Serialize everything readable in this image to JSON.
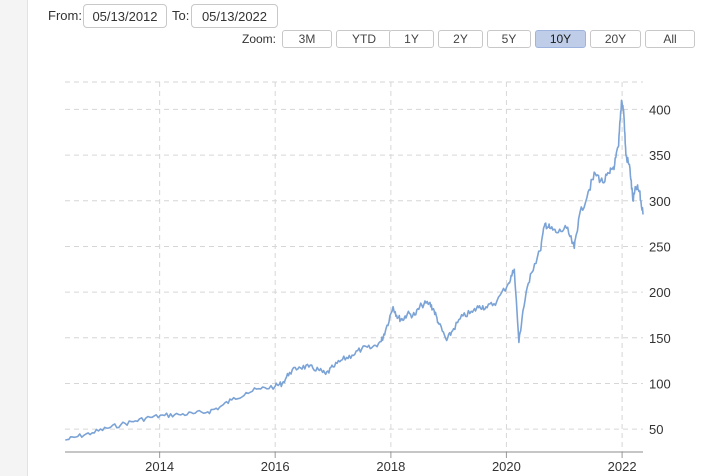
{
  "range": {
    "from_label": "From:",
    "from_value": "05/13/2012",
    "to_label": "To:",
    "to_value": "05/13/2022"
  },
  "zoom": {
    "label": "Zoom:",
    "buttons": [
      "3M",
      "YTD",
      "1Y",
      "2Y",
      "5Y",
      "10Y",
      "20Y",
      "All"
    ],
    "active": "10Y"
  },
  "colors": {
    "line": "#7ba3d6",
    "active_zoom": "#bfcde8"
  },
  "chart_data": {
    "type": "line",
    "title": "",
    "xlabel": "",
    "ylabel": "",
    "xlim": [
      "2012-05-13",
      "2022-05-13"
    ],
    "ylim": [
      25,
      430
    ],
    "y_ticks": [
      50,
      100,
      150,
      200,
      250,
      300,
      350,
      400
    ],
    "x_ticks": [
      "2014",
      "2016",
      "2018",
      "2020",
      "2022"
    ],
    "grid": true,
    "legend": "none",
    "series": [
      {
        "points": [
          [
            "2012-05-15",
            38
          ],
          [
            "2012-08-01",
            42
          ],
          [
            "2012-11-01",
            46
          ],
          [
            "2013-02-01",
            51
          ],
          [
            "2013-05-01",
            55
          ],
          [
            "2013-08-01",
            59
          ],
          [
            "2013-11-01",
            63
          ],
          [
            "2014-02-01",
            65
          ],
          [
            "2014-05-01",
            66
          ],
          [
            "2014-08-01",
            67
          ],
          [
            "2014-11-01",
            69
          ],
          [
            "2015-01-15",
            74
          ],
          [
            "2015-04-01",
            82
          ],
          [
            "2015-07-01",
            90
          ],
          [
            "2015-10-01",
            94
          ],
          [
            "2016-01-01",
            97
          ],
          [
            "2016-02-15",
            100
          ],
          [
            "2016-04-01",
            112
          ],
          [
            "2016-06-01",
            118
          ],
          [
            "2016-08-01",
            118
          ],
          [
            "2016-10-01",
            115
          ],
          [
            "2016-11-15",
            110
          ],
          [
            "2017-01-01",
            118
          ],
          [
            "2017-03-01",
            126
          ],
          [
            "2017-05-01",
            131
          ],
          [
            "2017-07-01",
            138
          ],
          [
            "2017-09-01",
            139
          ],
          [
            "2017-11-01",
            146
          ],
          [
            "2017-12-01",
            160
          ],
          [
            "2018-01-15",
            184
          ],
          [
            "2018-02-15",
            172
          ],
          [
            "2018-03-15",
            170
          ],
          [
            "2018-04-15",
            176
          ],
          [
            "2018-06-01",
            175
          ],
          [
            "2018-07-15",
            186
          ],
          [
            "2018-09-01",
            188
          ],
          [
            "2018-10-01",
            180
          ],
          [
            "2018-11-01",
            165
          ],
          [
            "2018-12-20",
            147
          ],
          [
            "2019-02-01",
            160
          ],
          [
            "2019-04-01",
            174
          ],
          [
            "2019-06-01",
            178
          ],
          [
            "2019-07-15",
            185
          ],
          [
            "2019-09-01",
            183
          ],
          [
            "2019-11-01",
            190
          ],
          [
            "2020-01-15",
            210
          ],
          [
            "2020-02-20",
            225
          ],
          [
            "2020-03-20",
            145
          ],
          [
            "2020-04-15",
            180
          ],
          [
            "2020-06-01",
            220
          ],
          [
            "2020-08-01",
            245
          ],
          [
            "2020-09-01",
            275
          ],
          [
            "2020-10-01",
            270
          ],
          [
            "2020-11-15",
            265
          ],
          [
            "2021-01-15",
            270
          ],
          [
            "2021-03-05",
            248
          ],
          [
            "2021-04-01",
            280
          ],
          [
            "2021-06-01",
            310
          ],
          [
            "2021-07-15",
            330
          ],
          [
            "2021-09-01",
            320
          ],
          [
            "2021-10-15",
            330
          ],
          [
            "2021-11-15",
            340
          ],
          [
            "2021-12-10",
            360
          ],
          [
            "2021-12-28",
            410
          ],
          [
            "2022-01-10",
            400
          ],
          [
            "2022-01-25",
            350
          ],
          [
            "2022-02-20",
            335
          ],
          [
            "2022-03-10",
            300
          ],
          [
            "2022-03-31",
            315
          ],
          [
            "2022-04-20",
            310
          ],
          [
            "2022-05-13",
            285
          ]
        ]
      }
    ]
  }
}
